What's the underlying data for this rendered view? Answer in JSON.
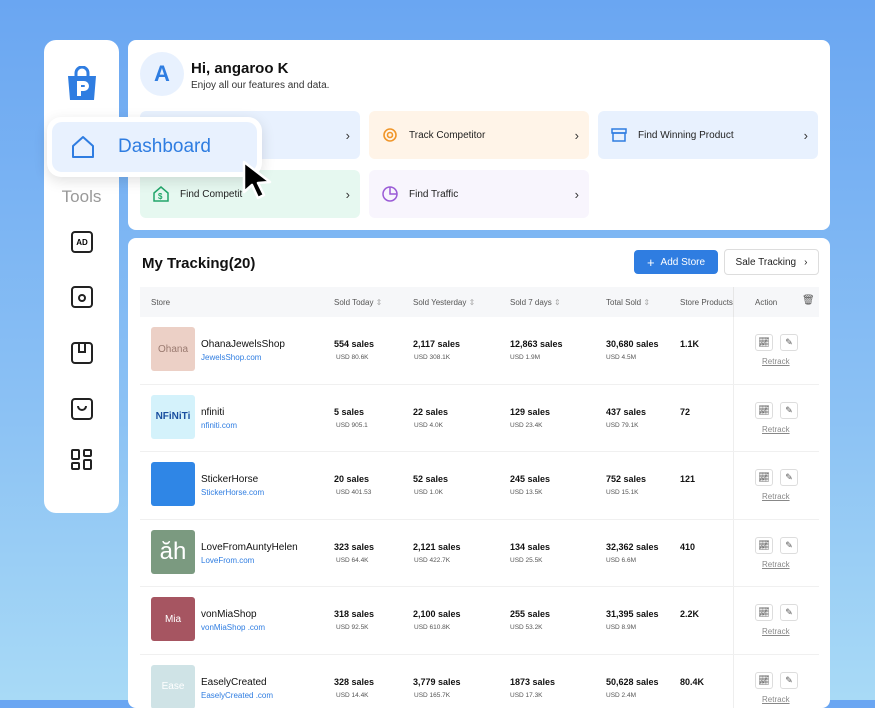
{
  "sidebar": {
    "tools_label": "Tools",
    "icons": [
      "ad-icon",
      "settings-box-icon",
      "bookmark-icon",
      "inbox-icon",
      "layout-icon"
    ]
  },
  "dashboard_popup": {
    "label": "Dashboard"
  },
  "header": {
    "avatar": "A",
    "greeting": "Hi, angaroo K",
    "subtitle": "Enjoy all our features and data."
  },
  "quick_actions": [
    {
      "label": "",
      "color": "#e8f1fe",
      "icon": "none"
    },
    {
      "label": "Track Competitor",
      "color": "#fff4e8",
      "icon": "target-icon",
      "icon_color": "#f0962a"
    },
    {
      "label": "Find Winning Product",
      "color": "#e8f1fe",
      "icon": "archive-icon",
      "icon_color": "#2f7de1"
    },
    {
      "label": "Find Competit",
      "color": "#e6f8f0",
      "icon": "store-dollar-icon",
      "icon_color": "#22a66b"
    },
    {
      "label": "Find Traffic",
      "color": "#f8f5fd",
      "icon": "pie-chart-icon",
      "icon_color": "#9a5ad6"
    }
  ],
  "tracking": {
    "title": "My Tracking(20)",
    "add_store": "Add Store",
    "sale_tracking": "Sale Tracking",
    "columns": [
      "Store",
      "Sold Today",
      "Sold Yesterday",
      "Sold 7 days",
      "Total Sold",
      "Store Products",
      "Action"
    ],
    "retrack": "Retrack",
    "rows": [
      {
        "name": "OhanaJewelsShop",
        "url": "JewelsShop.com",
        "logo": "Ohana",
        "logo_bg": "#ecd0c6",
        "today": "554 sales",
        "today_usd": "USD 80.6K",
        "yest": "2,117 sales",
        "yest_usd": "USD 308.1K",
        "week": "12,863 sales",
        "week_usd": "USD 1.9M",
        "total": "30,680 sales",
        "total_usd": "USD 4.5M",
        "products": "1.1K"
      },
      {
        "name": "nfiniti",
        "url": "nfiniti.com",
        "logo": "NFiNiTi",
        "logo_bg": "#d4f2fb",
        "today": "5 sales",
        "today_usd": "USD 905.1",
        "yest": "22 sales",
        "yest_usd": "USD 4.0K",
        "week": "129 sales",
        "week_usd": "USD 23.4K",
        "total": "437 sales",
        "total_usd": "USD 79.1K",
        "products": "72"
      },
      {
        "name": "StickerHorse",
        "url": "StickerHorse.com",
        "logo": "",
        "logo_bg": "#2f86e6",
        "today": "20 sales",
        "today_usd": "USD 401.53",
        "yest": "52 sales",
        "yest_usd": "USD 1.0K",
        "week": "245 sales",
        "week_usd": "USD 13.5K",
        "total": "752 sales",
        "total_usd": "USD 15.1K",
        "products": "121"
      },
      {
        "name": "LoveFromAuntyHelen",
        "url": "LoveFrom.com",
        "logo": "ăh",
        "logo_bg": "#7b9a80",
        "today": "323 sales",
        "today_usd": "USD 64.4K",
        "yest": "2,121 sales",
        "yest_usd": "USD 422.7K",
        "week": "134 sales",
        "week_usd": "USD 25.5K",
        "total": "32,362 sales",
        "total_usd": "USD 6.6M",
        "products": "410"
      },
      {
        "name": "vonMiaShop",
        "url": "vonMiaShop .com",
        "logo": "Mia",
        "logo_bg": "#a65561",
        "today": "318 sales",
        "today_usd": "USD 92.5K",
        "yest": "2,100 sales",
        "yest_usd": "USD 610.8K",
        "week": "255 sales",
        "week_usd": "USD 53.2K",
        "total": "31,395 sales",
        "total_usd": "USD 8.9M",
        "products": "2.2K"
      },
      {
        "name": "EaselyCreated",
        "url": "EaselyCreated .com",
        "logo": "Ease",
        "logo_bg": "#cfe3e6",
        "today": "328 sales",
        "today_usd": "USD 14.4K",
        "yest": "3,779 sales",
        "yest_usd": "USD 165.7K",
        "week": "1873 sales",
        "week_usd": "USD 17.3K",
        "total": "50,628 sales",
        "total_usd": "USD 2.4M",
        "products": "80.4K"
      }
    ]
  }
}
